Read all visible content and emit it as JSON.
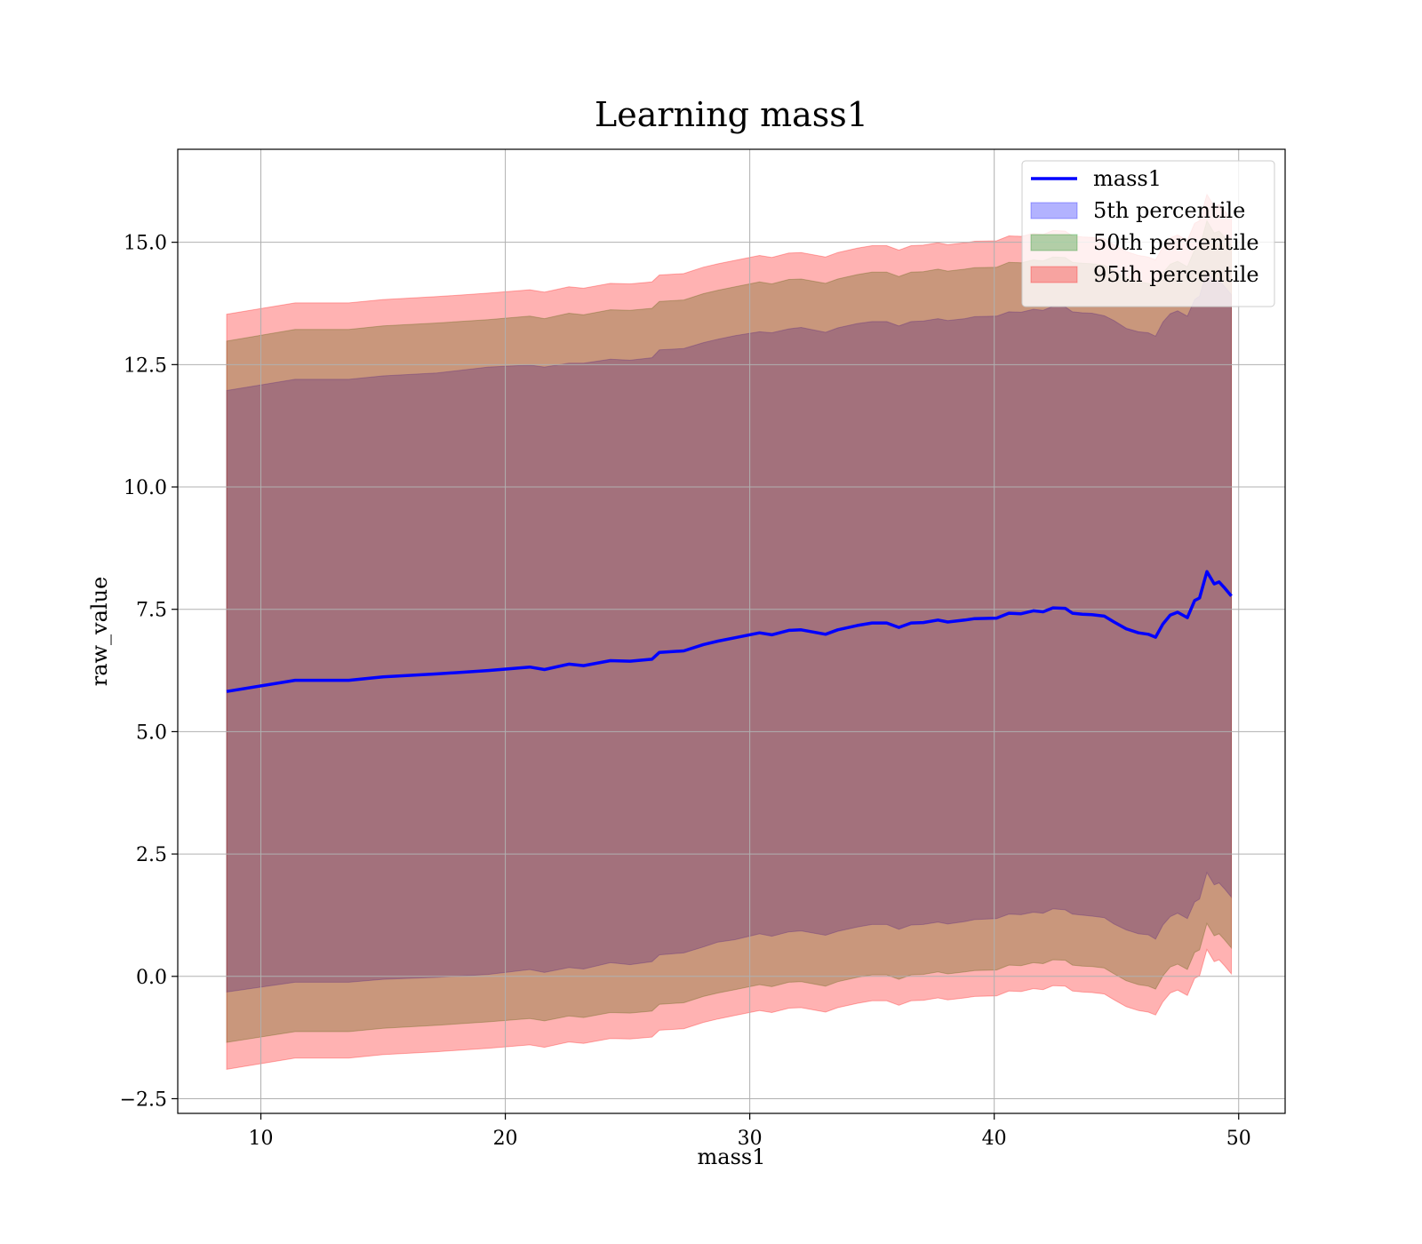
{
  "chart_data": {
    "type": "area",
    "title": "Learning mass1",
    "xlabel": "mass1",
    "ylabel": "raw_value",
    "xlim": [
      6.6,
      51.9
    ],
    "ylim": [
      -2.8,
      16.9
    ],
    "xticks": [
      10,
      20,
      30,
      40,
      50
    ],
    "yticks": [
      -2.5,
      0.0,
      2.5,
      5.0,
      7.5,
      10.0,
      12.5,
      15.0
    ],
    "ytick_labels": [
      "−2.5",
      "0.0",
      "2.5",
      "5.0",
      "7.5",
      "10.0",
      "12.5",
      "15.0"
    ],
    "grid": true,
    "legend_position": "upper right",
    "x": [
      8.6,
      11.4,
      13.6,
      15.0,
      17.2,
      19.3,
      21.0,
      21.6,
      22.6,
      23.2,
      24.3,
      25.1,
      26.0,
      26.3,
      27.3,
      28.1,
      28.7,
      29.4,
      30.4,
      30.9,
      31.6,
      32.1,
      33.1,
      33.6,
      34.4,
      35.0,
      35.6,
      36.1,
      36.6,
      37.1,
      37.7,
      38.1,
      38.8,
      39.2,
      40.1,
      40.6,
      41.1,
      41.6,
      42.0,
      42.4,
      42.9,
      43.2,
      43.6,
      44.0,
      44.5,
      44.9,
      45.4,
      45.9,
      46.3,
      46.6,
      46.9,
      47.2,
      47.5,
      47.9,
      48.2,
      48.4,
      48.7,
      49.0,
      49.2,
      49.4,
      49.7
    ],
    "series": [
      {
        "name": "mass1",
        "kind": "line",
        "color": "#0000ff",
        "values": [
          5.82,
          6.05,
          6.05,
          6.12,
          6.18,
          6.25,
          6.32,
          6.27,
          6.38,
          6.35,
          6.45,
          6.44,
          6.48,
          6.62,
          6.65,
          6.78,
          6.85,
          6.92,
          7.02,
          6.98,
          7.07,
          7.08,
          6.99,
          7.08,
          7.17,
          7.22,
          7.22,
          7.13,
          7.22,
          7.23,
          7.28,
          7.24,
          7.28,
          7.31,
          7.32,
          7.42,
          7.41,
          7.47,
          7.45,
          7.53,
          7.52,
          7.42,
          7.4,
          7.39,
          7.36,
          7.24,
          7.1,
          7.02,
          6.99,
          6.93,
          7.2,
          7.38,
          7.44,
          7.33,
          7.68,
          7.73,
          8.27,
          8.02,
          8.06,
          7.95,
          7.77
        ]
      },
      {
        "name": "5th percentile",
        "kind": "band",
        "color": "#0000ff",
        "lower": [
          -0.32,
          -0.12,
          -0.12,
          -0.06,
          -0.02,
          0.04,
          0.14,
          0.08,
          0.18,
          0.15,
          0.28,
          0.24,
          0.3,
          0.44,
          0.48,
          0.6,
          0.7,
          0.75,
          0.87,
          0.82,
          0.91,
          0.93,
          0.84,
          0.92,
          1.01,
          1.06,
          1.06,
          0.96,
          1.05,
          1.06,
          1.11,
          1.07,
          1.12,
          1.16,
          1.18,
          1.27,
          1.26,
          1.31,
          1.29,
          1.38,
          1.36,
          1.27,
          1.25,
          1.23,
          1.2,
          1.07,
          0.95,
          0.87,
          0.85,
          0.76,
          1.05,
          1.22,
          1.29,
          1.18,
          1.52,
          1.58,
          2.12,
          1.87,
          1.91,
          1.8,
          1.62
        ],
        "upper": [
          11.97,
          12.2,
          12.2,
          12.27,
          12.33,
          12.45,
          12.49,
          12.45,
          12.53,
          12.53,
          12.61,
          12.59,
          12.64,
          12.8,
          12.83,
          12.95,
          13.02,
          13.09,
          13.17,
          13.15,
          13.23,
          13.26,
          13.16,
          13.25,
          13.34,
          13.38,
          13.38,
          13.29,
          13.38,
          13.39,
          13.44,
          13.4,
          13.44,
          13.48,
          13.49,
          13.58,
          13.57,
          13.63,
          13.61,
          13.69,
          13.68,
          13.58,
          13.56,
          13.55,
          13.5,
          13.4,
          13.24,
          13.17,
          13.15,
          13.08,
          13.37,
          13.54,
          13.6,
          13.49,
          13.83,
          13.9,
          14.43,
          14.18,
          14.22,
          14.11,
          13.93
        ]
      },
      {
        "name": "50th percentile",
        "kind": "band",
        "color": "#008000",
        "lower": [
          -1.35,
          -1.13,
          -1.13,
          -1.06,
          -1.0,
          -0.93,
          -0.86,
          -0.91,
          -0.81,
          -0.84,
          -0.74,
          -0.75,
          -0.71,
          -0.57,
          -0.54,
          -0.41,
          -0.34,
          -0.27,
          -0.17,
          -0.21,
          -0.12,
          -0.11,
          -0.2,
          -0.11,
          -0.02,
          0.03,
          0.03,
          -0.06,
          0.03,
          0.04,
          0.09,
          0.05,
          0.09,
          0.12,
          0.13,
          0.23,
          0.22,
          0.28,
          0.26,
          0.34,
          0.33,
          0.23,
          0.21,
          0.2,
          0.17,
          0.05,
          -0.09,
          -0.17,
          -0.2,
          -0.26,
          0.01,
          0.19,
          0.25,
          0.14,
          0.49,
          0.54,
          1.08,
          0.83,
          0.87,
          0.76,
          0.58
        ],
        "upper": [
          12.98,
          13.22,
          13.22,
          13.29,
          13.35,
          13.42,
          13.49,
          13.44,
          13.55,
          13.52,
          13.62,
          13.61,
          13.65,
          13.79,
          13.82,
          13.95,
          14.02,
          14.09,
          14.19,
          14.15,
          14.24,
          14.25,
          14.16,
          14.25,
          14.34,
          14.39,
          14.39,
          14.3,
          14.39,
          14.4,
          14.45,
          14.41,
          14.45,
          14.48,
          14.49,
          14.59,
          14.58,
          14.64,
          14.62,
          14.7,
          14.69,
          14.59,
          14.57,
          14.56,
          14.53,
          14.41,
          14.27,
          14.19,
          14.16,
          14.1,
          14.37,
          14.55,
          14.61,
          14.5,
          14.85,
          14.9,
          15.44,
          15.19,
          15.23,
          15.12,
          14.94
        ]
      },
      {
        "name": "95th percentile",
        "kind": "band",
        "color": "#ff0000",
        "lower": [
          -1.9,
          -1.67,
          -1.67,
          -1.6,
          -1.54,
          -1.47,
          -1.4,
          -1.45,
          -1.34,
          -1.37,
          -1.27,
          -1.28,
          -1.24,
          -1.1,
          -1.07,
          -0.94,
          -0.87,
          -0.8,
          -0.7,
          -0.74,
          -0.65,
          -0.64,
          -0.73,
          -0.64,
          -0.55,
          -0.5,
          -0.5,
          -0.59,
          -0.5,
          -0.49,
          -0.44,
          -0.48,
          -0.44,
          -0.41,
          -0.4,
          -0.3,
          -0.31,
          -0.25,
          -0.27,
          -0.19,
          -0.2,
          -0.3,
          -0.32,
          -0.33,
          -0.36,
          -0.48,
          -0.62,
          -0.7,
          -0.73,
          -0.79,
          -0.52,
          -0.34,
          -0.28,
          -0.39,
          -0.04,
          0.01,
          0.55,
          0.3,
          0.34,
          0.23,
          0.05
        ],
        "upper": [
          13.53,
          13.76,
          13.76,
          13.83,
          13.89,
          13.96,
          14.03,
          13.98,
          14.09,
          14.06,
          14.16,
          14.15,
          14.19,
          14.33,
          14.36,
          14.49,
          14.56,
          14.63,
          14.73,
          14.69,
          14.78,
          14.79,
          14.7,
          14.79,
          14.88,
          14.93,
          14.93,
          14.84,
          14.93,
          14.94,
          14.99,
          14.95,
          14.99,
          15.02,
          15.03,
          15.13,
          15.12,
          15.18,
          15.16,
          15.24,
          15.23,
          15.13,
          15.11,
          15.1,
          15.07,
          14.95,
          14.81,
          14.73,
          14.7,
          14.64,
          14.91,
          15.09,
          15.15,
          15.04,
          15.39,
          15.44,
          15.98,
          15.73,
          15.77,
          15.66,
          15.48
        ]
      }
    ]
  }
}
